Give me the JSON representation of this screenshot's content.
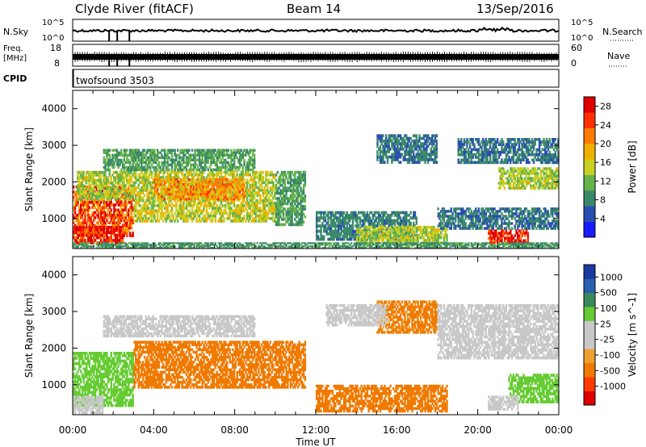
{
  "header": {
    "title": "Clyde River (fitACF)",
    "beam": "Beam 14",
    "date": "13/Sep/2016"
  },
  "strip_nsky": {
    "left_label": "N.Sky",
    "left_ticks": [
      "10^5",
      "10^0"
    ],
    "right_label": "N.Search",
    "right_ticks": [
      "10^5",
      "10^0"
    ]
  },
  "strip_freq": {
    "left_label_1": "Freq.",
    "left_label_2": "[MHz]",
    "left_ticks": [
      "18",
      "8"
    ],
    "right_label": "Nave",
    "right_ticks": [
      "60",
      "0"
    ]
  },
  "strip_cpid": {
    "label": "CPID",
    "program": "twofsound 3503"
  },
  "colors": {
    "power": [
      "#1a1aff",
      "#2a4fb0",
      "#3a8a6a",
      "#66b34a",
      "#c8d020",
      "#f0b000",
      "#ff7a00",
      "#ff3000",
      "#e00000"
    ],
    "velocity": [
      "#e00000",
      "#ff3a00",
      "#f07a00",
      "#f0a030",
      "#c8c8c8",
      "#c8c8c8",
      "#66cc33",
      "#3a8a5a",
      "#2a5fb0",
      "#1a3aa0"
    ]
  },
  "chart_data": [
    {
      "type": "heatmap",
      "name": "power",
      "ylabel": "Slant Range [km]",
      "xlabel": "",
      "x_ticks": [
        "00:00",
        "04:00",
        "08:00",
        "12:00",
        "16:00",
        "20:00",
        "00:00"
      ],
      "xlim_hours": [
        0,
        24
      ],
      "y_ticks": [
        1000,
        2000,
        3000,
        4000
      ],
      "ylim": [
        180,
        4500
      ],
      "colorbar_label": "Power [dB]",
      "colorbar_ticks": [
        4,
        8,
        12,
        16,
        20,
        24,
        28
      ],
      "colorbar_range": [
        0,
        30
      ],
      "regions": [
        {
          "t0": 0.0,
          "t1": 3.0,
          "r0": 500,
          "r1": 1900,
          "v": 24
        },
        {
          "t0": 0.0,
          "t1": 2.5,
          "r0": 300,
          "r1": 800,
          "v": 28
        },
        {
          "t0": 0.2,
          "t1": 3.0,
          "r0": 1500,
          "r1": 2300,
          "v": 14
        },
        {
          "t0": 3.0,
          "t1": 10.0,
          "r0": 900,
          "r1": 2300,
          "v": 15
        },
        {
          "t0": 4.0,
          "t1": 8.5,
          "r0": 1500,
          "r1": 2100,
          "v": 20
        },
        {
          "t0": 1.5,
          "t1": 9.0,
          "r0": 2300,
          "r1": 2900,
          "v": 10
        },
        {
          "t0": 10.0,
          "t1": 11.5,
          "r0": 800,
          "r1": 2300,
          "v": 10
        },
        {
          "t0": 12.0,
          "t1": 17.0,
          "r0": 400,
          "r1": 1200,
          "v": 8
        },
        {
          "t0": 14.0,
          "t1": 18.5,
          "r0": 300,
          "r1": 800,
          "v": 14
        },
        {
          "t0": 15.0,
          "t1": 18.0,
          "r0": 2500,
          "r1": 3300,
          "v": 7
        },
        {
          "t0": 18.0,
          "t1": 24.0,
          "r0": 700,
          "r1": 1300,
          "v": 7
        },
        {
          "t0": 21.0,
          "t1": 24.0,
          "r0": 1800,
          "r1": 2400,
          "v": 14
        },
        {
          "t0": 20.5,
          "t1": 22.5,
          "r0": 300,
          "r1": 700,
          "v": 28
        },
        {
          "t0": 19.0,
          "t1": 24.0,
          "r0": 2500,
          "r1": 3200,
          "v": 7
        },
        {
          "t0": 0.0,
          "t1": 24.0,
          "r0": 180,
          "r1": 350,
          "v": 9
        }
      ]
    },
    {
      "type": "heatmap",
      "name": "velocity",
      "ylabel": "Slant Range [km]",
      "xlabel": "Time UT",
      "x_ticks": [
        "00:00",
        "04:00",
        "08:00",
        "12:00",
        "16:00",
        "20:00",
        "00:00"
      ],
      "xlim_hours": [
        0,
        24
      ],
      "y_ticks": [
        1000,
        2000,
        3000,
        4000
      ],
      "ylim": [
        180,
        4500
      ],
      "colorbar_label": "Velocity [m s^-1]",
      "colorbar_ticks": [
        1000,
        500,
        100,
        25,
        -25,
        -100,
        -500,
        -1000
      ],
      "regions": [
        {
          "t0": 0.0,
          "t1": 3.0,
          "r0": 400,
          "r1": 1900,
          "v": 60
        },
        {
          "t0": 0.0,
          "t1": 1.5,
          "r0": 200,
          "r1": 700,
          "v": 0
        },
        {
          "t0": 3.0,
          "t1": 10.0,
          "r0": 900,
          "r1": 2200,
          "v": -150
        },
        {
          "t0": 1.5,
          "t1": 9.0,
          "r0": 2300,
          "r1": 2900,
          "v": 0
        },
        {
          "t0": 10.0,
          "t1": 11.5,
          "r0": 900,
          "r1": 2200,
          "v": -150
        },
        {
          "t0": 12.0,
          "t1": 18.5,
          "r0": 250,
          "r1": 1000,
          "v": -150
        },
        {
          "t0": 15.0,
          "t1": 18.0,
          "r0": 2400,
          "r1": 3300,
          "v": -120
        },
        {
          "t0": 12.5,
          "t1": 15.5,
          "r0": 2600,
          "r1": 3200,
          "v": 0
        },
        {
          "t0": 18.0,
          "t1": 24.0,
          "r0": 1700,
          "r1": 3200,
          "v": 0
        },
        {
          "t0": 21.5,
          "t1": 24.0,
          "r0": 500,
          "r1": 1300,
          "v": 60
        },
        {
          "t0": 20.5,
          "t1": 22.0,
          "r0": 300,
          "r1": 700,
          "v": 0
        }
      ]
    }
  ]
}
